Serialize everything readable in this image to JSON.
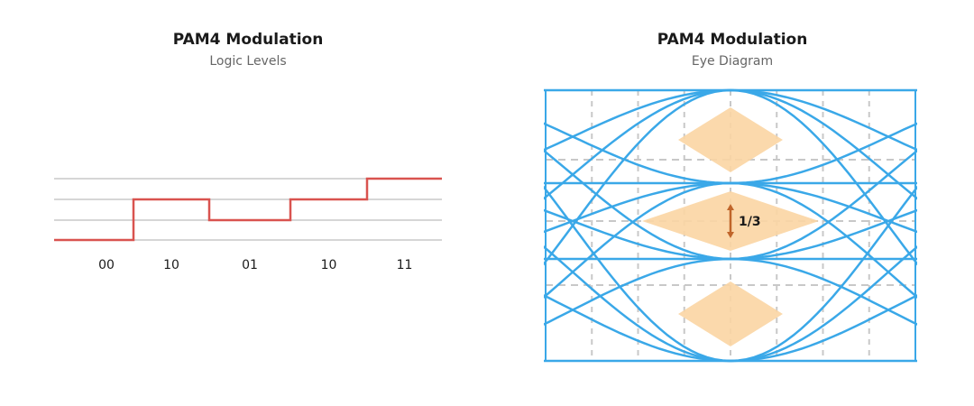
{
  "left": {
    "title": "PAM4 Modulation",
    "subtitle": "Logic Levels",
    "symbols": [
      {
        "label": "00",
        "level": 0
      },
      {
        "label": "10",
        "level": 2
      },
      {
        "label": "01",
        "level": 1
      },
      {
        "label": "10",
        "level": 2
      },
      {
        "label": "11",
        "level": 3
      }
    ],
    "levels": 4
  },
  "right": {
    "title": "PAM4 Modulation",
    "subtitle": "Eye Diagram",
    "eye_opening_label": "1/3"
  },
  "colors": {
    "signal": "#d9534f",
    "eye": "#3aa8e8",
    "eye_fill": "#fbd5a3",
    "arrow": "#c0652a",
    "grid": "#c8c8c8"
  }
}
